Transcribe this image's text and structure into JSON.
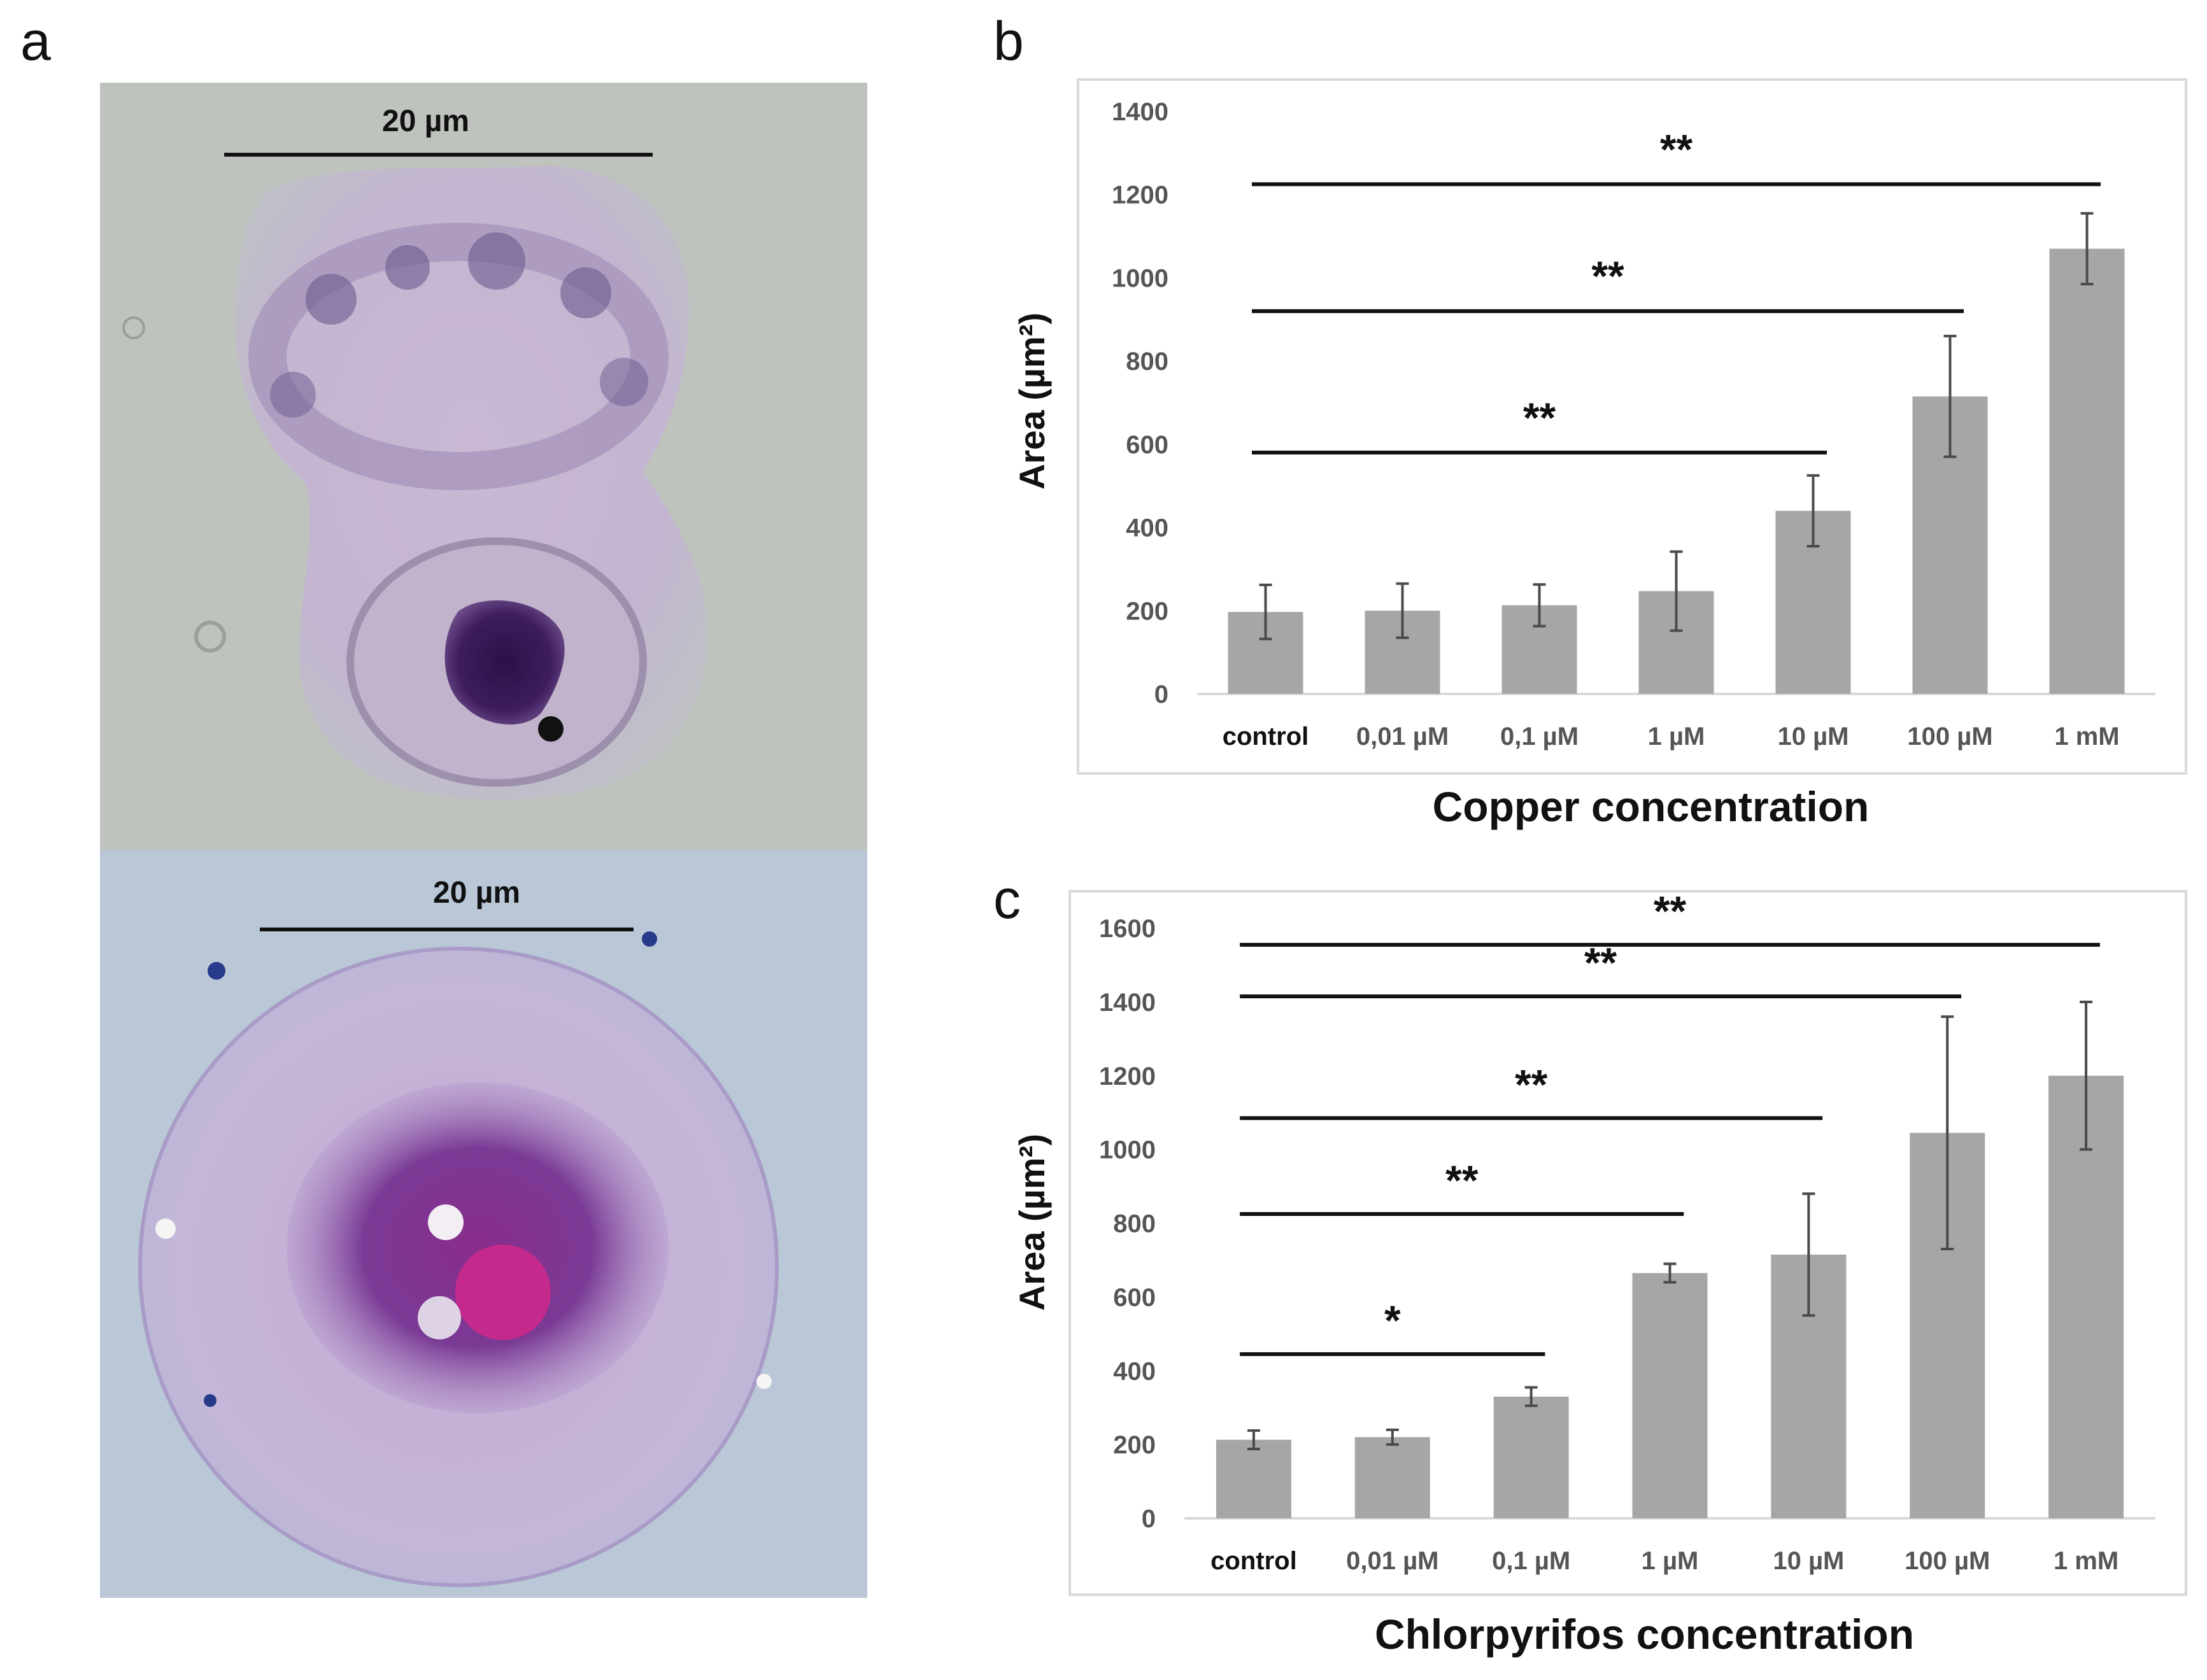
{
  "panel_labels": {
    "a": "a",
    "b": "b",
    "c": "c"
  },
  "micrographs": {
    "top": {
      "scale_label": "20 µm"
    },
    "bottom": {
      "scale_label": "20 µm"
    }
  },
  "colors": {
    "bar": "#a6a6a6",
    "error": "#4a4a4a",
    "axis_text": "#555555",
    "title_text": "#111111",
    "frame": "#d9d9d9"
  },
  "chart_data": [
    {
      "id": "b",
      "type": "bar",
      "title": "",
      "xlabel": "Copper concentration",
      "ylabel": "Area (µm²)",
      "ylim": [
        0,
        1400
      ],
      "yticks": [
        0,
        200,
        400,
        600,
        800,
        1000,
        1200,
        1400
      ],
      "categories": [
        "control",
        "0,01 µM",
        "0,1 µM",
        "1 µM",
        "10 µM",
        "100 µM",
        "1 mM"
      ],
      "values": [
        197,
        200,
        213,
        247,
        440,
        715,
        1070
      ],
      "errors": [
        65,
        65,
        50,
        95,
        85,
        145,
        85
      ],
      "significance": [
        {
          "from": 0,
          "to": 6,
          "label": "**",
          "y": 1225
        },
        {
          "from": 0,
          "to": 5,
          "label": "**",
          "y": 920
        },
        {
          "from": 0,
          "to": 4,
          "label": "**",
          "y": 580
        }
      ]
    },
    {
      "id": "c",
      "type": "bar",
      "title": "",
      "xlabel": "Chlorpyrifos concentration",
      "ylabel": "Area (µm²)",
      "ylim": [
        0,
        1600
      ],
      "yticks": [
        0,
        200,
        400,
        600,
        800,
        1000,
        1200,
        1400,
        1600
      ],
      "categories": [
        "control",
        "0,01 µM",
        "0,1 µM",
        "1 µM",
        "10 µM",
        "100 µM",
        "1 mM"
      ],
      "values": [
        213,
        220,
        330,
        665,
        715,
        1045,
        1200
      ],
      "errors": [
        25,
        20,
        25,
        25,
        165,
        315,
        200
      ],
      "significance": [
        {
          "from": 0,
          "to": 6,
          "label": "**",
          "y": 1555
        },
        {
          "from": 0,
          "to": 5,
          "label": "**",
          "y": 1415
        },
        {
          "from": 0,
          "to": 4,
          "label": "**",
          "y": 1085
        },
        {
          "from": 0,
          "to": 3,
          "label": "**",
          "y": 825
        },
        {
          "from": 0,
          "to": 2,
          "label": "*",
          "y": 445
        }
      ]
    }
  ]
}
